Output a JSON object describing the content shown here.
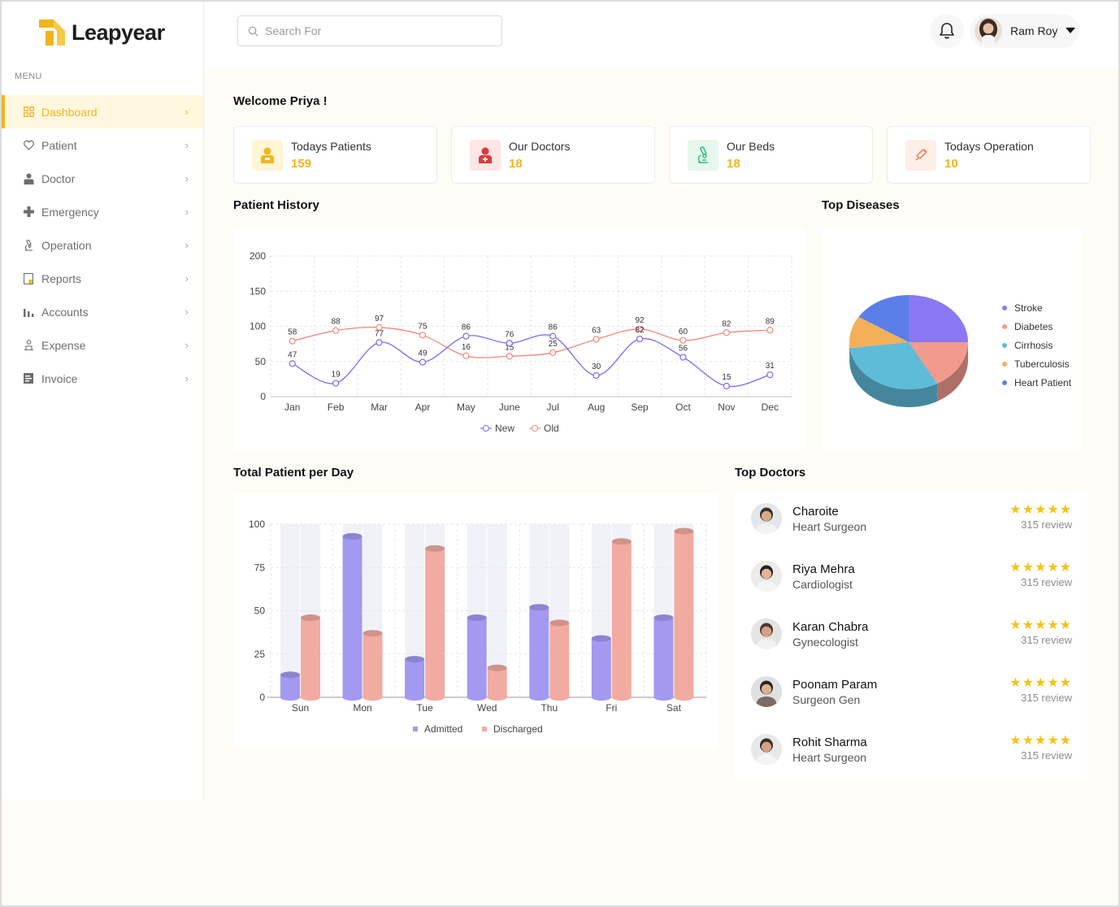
{
  "app": {
    "name": "Leapyear"
  },
  "sidebar": {
    "menu_label": "MENU",
    "items": [
      {
        "label": "Dashboard",
        "icon": "grid-icon",
        "active": true
      },
      {
        "label": "Patient",
        "icon": "heart-shield-icon"
      },
      {
        "label": "Doctor",
        "icon": "doctor-icon"
      },
      {
        "label": "Emergency",
        "icon": "plus-cross-icon"
      },
      {
        "label": "Operation",
        "icon": "microscope-icon"
      },
      {
        "label": "Reports",
        "icon": "report-icon"
      },
      {
        "label": "Accounts",
        "icon": "bar-chart-icon"
      },
      {
        "label": "Expense",
        "icon": "expense-icon"
      },
      {
        "label": "Invoice",
        "icon": "invoice-icon"
      }
    ]
  },
  "header": {
    "search_placeholder": "Search For",
    "user_name": "Ram Roy"
  },
  "welcome": "Welcome Priya !",
  "stats": [
    {
      "label": "Todays Patients",
      "value": "159",
      "icon": "patient-icon",
      "color": "#f0b51d"
    },
    {
      "label": "Our Doctors",
      "value": "18",
      "icon": "doctor-icon",
      "color": "#e0383b"
    },
    {
      "label": "Our Beds",
      "value": "18",
      "icon": "microscope-icon",
      "color": "#2bb673"
    },
    {
      "label": "Todays Operation",
      "value": "10",
      "icon": "syringe-icon",
      "color": "#ef7d52"
    }
  ],
  "sections": {
    "patient_history": "Patient History",
    "top_diseases": "Top Diseases",
    "total_per_day": "Total Patient per Day",
    "top_doctors": "Top Doctors"
  },
  "chart_data": [
    {
      "type": "line",
      "title": "Patient History",
      "categories": [
        "Jan",
        "Feb",
        "Mar",
        "Apr",
        "May",
        "June",
        "Jul",
        "Aug",
        "Sep",
        "Oct",
        "Nov",
        "Dec"
      ],
      "series": [
        {
          "name": "New",
          "color": "#7b6cf0",
          "values": [
            47,
            19,
            77,
            49,
            86,
            76,
            86,
            30,
            82,
            56,
            15,
            31
          ]
        },
        {
          "name": "Old",
          "color": "#f0887a",
          "values": [
            58,
            88,
            97,
            75,
            16,
            15,
            25,
            63,
            92,
            60,
            82,
            89
          ]
        }
      ],
      "ylim": [
        0,
        200
      ],
      "yticks": [
        0,
        50,
        100,
        150,
        200
      ],
      "legend": "bottom",
      "grid": true
    },
    {
      "type": "pie",
      "title": "Top Diseases",
      "slices": [
        {
          "label": "Stroke",
          "value": 25,
          "color": "#8a78f5"
        },
        {
          "label": "Diabetes",
          "value": 17,
          "color": "#f29a8e"
        },
        {
          "label": "Cirrhosis",
          "value": 31,
          "color": "#5fbcd9"
        },
        {
          "label": "Tuberculosis",
          "value": 11,
          "color": "#f4b059"
        },
        {
          "label": "Heart Patient",
          "value": 16,
          "color": "#5b7fe8"
        }
      ],
      "legend": "right"
    },
    {
      "type": "bar",
      "title": "Total Patient per Day",
      "categories": [
        "Sun",
        "Mon",
        "Tue",
        "Wed",
        "Thu",
        "Fri",
        "Sat"
      ],
      "series": [
        {
          "name": "Admitted",
          "color": "#a399f1",
          "values": [
            13,
            93,
            22,
            46,
            52,
            34,
            46
          ]
        },
        {
          "name": "Discharged",
          "color": "#f1aba1",
          "values": [
            46,
            37,
            86,
            17,
            43,
            90,
            96
          ]
        }
      ],
      "ylim": [
        0,
        100
      ],
      "yticks": [
        0,
        25,
        50,
        75,
        100
      ],
      "legend": "bottom"
    }
  ],
  "doctors": [
    {
      "name": "Charoite",
      "specialty": "Heart Surgeon",
      "stars": "★★★★★",
      "review": "315 review"
    },
    {
      "name": "Riya Mehra",
      "specialty": "Cardiologist",
      "stars": "★★★★★",
      "review": "315 review"
    },
    {
      "name": "Karan Chabra",
      "specialty": "Gynecologist",
      "stars": "★★★★★",
      "review": "315 review"
    },
    {
      "name": "Poonam Param",
      "specialty": "Surgeon Gen",
      "stars": "★★★★★",
      "review": "315 review"
    },
    {
      "name": "Rohit Sharma",
      "specialty": "Heart Surgeon",
      "stars": "★★★★★",
      "review": "315 review"
    }
  ]
}
